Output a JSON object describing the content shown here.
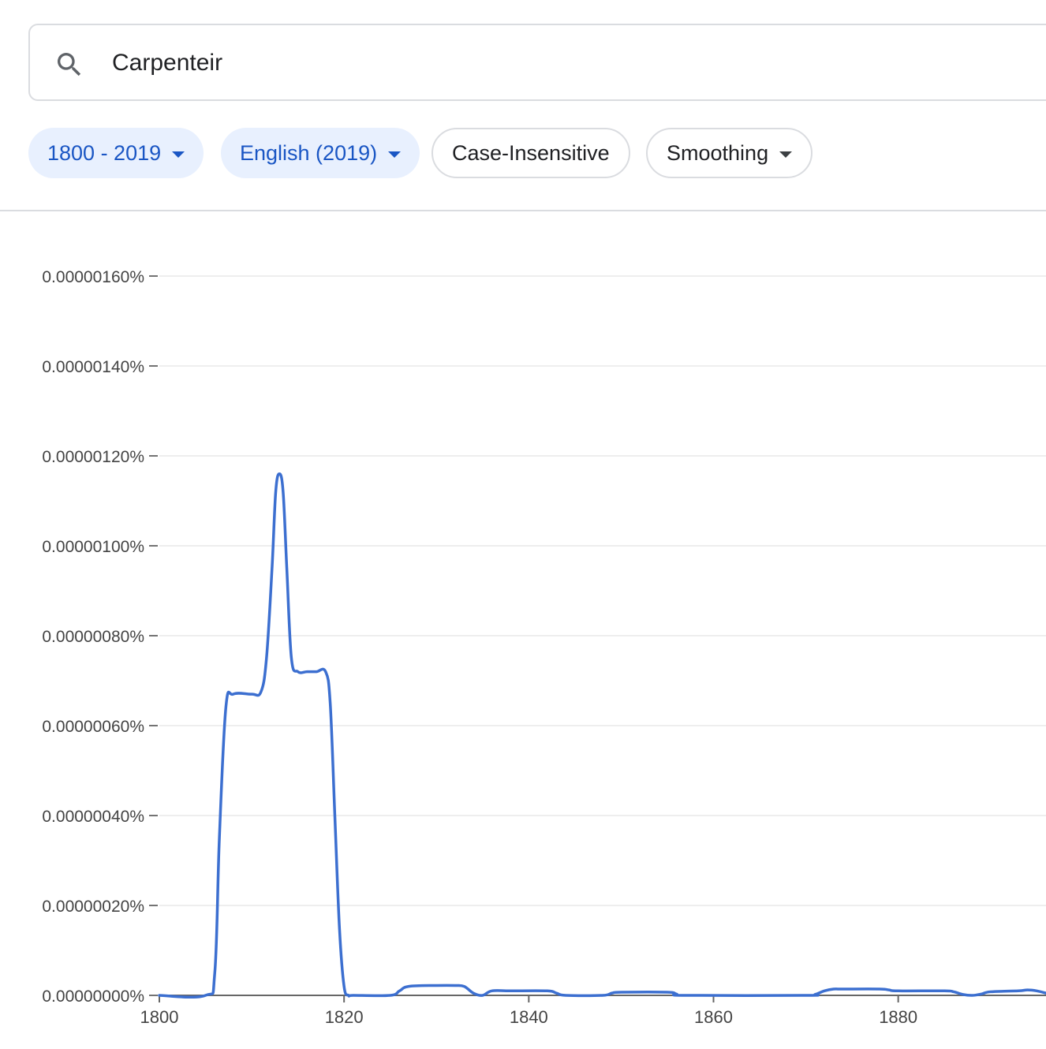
{
  "search": {
    "value": "Carpenteir"
  },
  "filters": {
    "year_range": "1800 - 2019",
    "corpus": "English (2019)",
    "case": "Case-Insensitive",
    "smoothing": "Smoothing"
  },
  "icons": {
    "search": "search-icon",
    "dropdown": "chevron-down-icon"
  },
  "colors": {
    "line": "#3c6fd0",
    "chip_selected_bg": "#e8f0fe",
    "chip_selected_text": "#1a56c4"
  },
  "chart_data": {
    "type": "line",
    "xlim": [
      1800,
      1896
    ],
    "ylim": [
      0,
      1.6e-08
    ],
    "x_ticks": [
      1800,
      1820,
      1840,
      1860,
      1880
    ],
    "y_ticks": [
      "0.00000000%",
      "0.00000020%",
      "0.00000040%",
      "0.00000060%",
      "0.00000080%",
      "0.00000100%",
      "0.00000120%",
      "0.00000140%",
      "0.00000160%"
    ],
    "series": [
      {
        "x": [
          1800,
          1805,
          1806,
          1806.5,
          1807.2,
          1808,
          1810,
          1811,
          1811.6,
          1812.2,
          1812.6,
          1813,
          1813.4,
          1813.8,
          1814.3,
          1815,
          1816,
          1817,
          1818,
          1818.5,
          1819,
          1819.5,
          1820,
          1820.5,
          1821,
          1825,
          1826,
          1827,
          1830,
          1832,
          1833,
          1834,
          1835,
          1836,
          1838,
          1842,
          1843,
          1844,
          1848,
          1849,
          1850,
          1855,
          1856,
          1857,
          1870,
          1871,
          1872,
          1873,
          1874,
          1878,
          1879,
          1880,
          1885,
          1886,
          1887,
          1888,
          1889,
          1890,
          1893,
          1894,
          1895,
          1896
        ],
        "y": [
          0,
          0,
          5e-10,
          3.5e-09,
          6.4e-09,
          6.7e-09,
          6.7e-09,
          6.75e-09,
          7.5e-09,
          9.5e-09,
          1.12e-08,
          1.16e-08,
          1.12e-08,
          9.5e-09,
          7.5e-09,
          7.2e-09,
          7.2e-09,
          7.2e-09,
          7.2e-09,
          6.5e-09,
          4e-09,
          1.5e-09,
          2e-10,
          0,
          0,
          0,
          1e-10,
          2e-10,
          2.2e-10,
          2.2e-10,
          2e-10,
          5e-11,
          0,
          1e-10,
          1e-10,
          1e-10,
          5e-11,
          0,
          0,
          5e-11,
          7e-11,
          7e-11,
          3e-11,
          0,
          0,
          2e-11,
          1e-10,
          1.4e-10,
          1.4e-10,
          1.4e-10,
          1.2e-10,
          1e-10,
          1e-10,
          8e-11,
          2e-11,
          0,
          3e-11,
          8e-11,
          1e-10,
          1.2e-10,
          1e-10,
          5e-11
        ]
      }
    ]
  }
}
